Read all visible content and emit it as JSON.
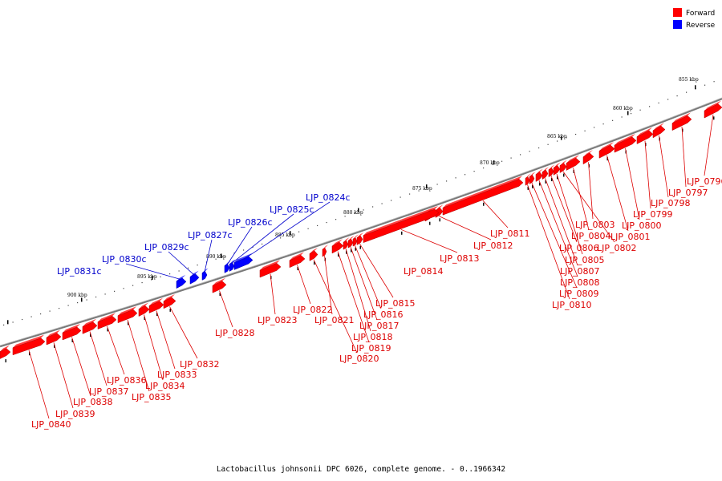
{
  "legend": {
    "items": [
      {
        "label": "Forward",
        "color": "#ff0000"
      },
      {
        "label": "Reverse",
        "color": "#0000ff"
      }
    ]
  },
  "caption": "Lactobacillus johnsonii DPC 6026, complete genome. - 0..1966342",
  "scale_labels": [
    "855 kbp",
    "860 kbp",
    "865 kbp",
    "870 kbp",
    "875 kbp",
    "880 kbp",
    "885 kbp",
    "890 kbp",
    "895 kbp",
    "900 kbp"
  ],
  "genes": [
    {
      "label": "LJP_0796",
      "strand": "forward"
    },
    {
      "label": "LJP_0797",
      "strand": "forward"
    },
    {
      "label": "LJP_0798",
      "strand": "forward"
    },
    {
      "label": "LJP_0799",
      "strand": "forward"
    },
    {
      "label": "LJP_0800",
      "strand": "forward"
    },
    {
      "label": "LJP_0801",
      "strand": "forward"
    },
    {
      "label": "LJP_0802",
      "strand": "forward"
    },
    {
      "label": "LJP_0803",
      "strand": "forward"
    },
    {
      "label": "LJP_0804",
      "strand": "forward"
    },
    {
      "label": "LJP_0805",
      "strand": "forward"
    },
    {
      "label": "LJP_0806",
      "strand": "forward"
    },
    {
      "label": "LJP_0807",
      "strand": "forward"
    },
    {
      "label": "LJP_0808",
      "strand": "forward"
    },
    {
      "label": "LJP_0809",
      "strand": "forward"
    },
    {
      "label": "LJP_0810",
      "strand": "forward"
    },
    {
      "label": "LJP_0811",
      "strand": "forward"
    },
    {
      "label": "LJP_0812",
      "strand": "forward"
    },
    {
      "label": "LJP_0813",
      "strand": "forward"
    },
    {
      "label": "LJP_0814",
      "strand": "forward"
    },
    {
      "label": "LJP_0815",
      "strand": "forward"
    },
    {
      "label": "LJP_0816",
      "strand": "forward"
    },
    {
      "label": "LJP_0817",
      "strand": "forward"
    },
    {
      "label": "LJP_0818",
      "strand": "forward"
    },
    {
      "label": "LJP_0819",
      "strand": "forward"
    },
    {
      "label": "LJP_0820",
      "strand": "forward"
    },
    {
      "label": "LJP_0821",
      "strand": "forward"
    },
    {
      "label": "LJP_0822",
      "strand": "forward"
    },
    {
      "label": "LJP_0823",
      "strand": "forward"
    },
    {
      "label": "LJP_0824c",
      "strand": "reverse"
    },
    {
      "label": "LJP_0825c",
      "strand": "reverse"
    },
    {
      "label": "LJP_0826c",
      "strand": "reverse"
    },
    {
      "label": "LJP_0827c",
      "strand": "reverse"
    },
    {
      "label": "LJP_0828",
      "strand": "forward"
    },
    {
      "label": "LJP_0829c",
      "strand": "reverse"
    },
    {
      "label": "LJP_0830c",
      "strand": "reverse"
    },
    {
      "label": "LJP_0831c",
      "strand": "reverse"
    },
    {
      "label": "LJP_0832",
      "strand": "forward"
    },
    {
      "label": "LJP_0833",
      "strand": "forward"
    },
    {
      "label": "LJP_0834",
      "strand": "forward"
    },
    {
      "label": "LJP_0835",
      "strand": "forward"
    },
    {
      "label": "LJP_0836",
      "strand": "forward"
    },
    {
      "label": "LJP_0837",
      "strand": "forward"
    },
    {
      "label": "LJP_0838",
      "strand": "forward"
    },
    {
      "label": "LJP_0839",
      "strand": "forward"
    },
    {
      "label": "LJP_0840",
      "strand": "forward"
    }
  ]
}
